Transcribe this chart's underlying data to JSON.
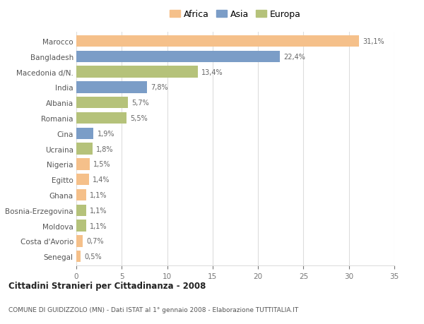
{
  "countries": [
    "Marocco",
    "Bangladesh",
    "Macedonia d/N.",
    "India",
    "Albania",
    "Romania",
    "Cina",
    "Ucraina",
    "Nigeria",
    "Egitto",
    "Ghana",
    "Bosnia-Erzegovina",
    "Moldova",
    "Costa d'Avorio",
    "Senegal"
  ],
  "values": [
    31.1,
    22.4,
    13.4,
    7.8,
    5.7,
    5.5,
    1.9,
    1.8,
    1.5,
    1.4,
    1.1,
    1.1,
    1.1,
    0.7,
    0.5
  ],
  "labels": [
    "31,1%",
    "22,4%",
    "13,4%",
    "7,8%",
    "5,7%",
    "5,5%",
    "1,9%",
    "1,8%",
    "1,5%",
    "1,4%",
    "1,1%",
    "1,1%",
    "1,1%",
    "0,7%",
    "0,5%"
  ],
  "regions": [
    "Africa",
    "Asia",
    "Europa",
    "Asia",
    "Europa",
    "Europa",
    "Asia",
    "Europa",
    "Africa",
    "Africa",
    "Africa",
    "Europa",
    "Europa",
    "Africa",
    "Africa"
  ],
  "colors": {
    "Africa": "#F5C08A",
    "Asia": "#7B9DC7",
    "Europa": "#B5C27A"
  },
  "title": "Cittadini Stranieri per Cittadinanza - 2008",
  "subtitle": "COMUNE DI GUIDIZZOLO (MN) - Dati ISTAT al 1° gennaio 2008 - Elaborazione TUTTITALIA.IT",
  "xlim": [
    0,
    35
  ],
  "xticks": [
    0,
    5,
    10,
    15,
    20,
    25,
    30,
    35
  ],
  "background_color": "#ffffff",
  "grid_color": "#dddddd",
  "bar_height": 0.75
}
